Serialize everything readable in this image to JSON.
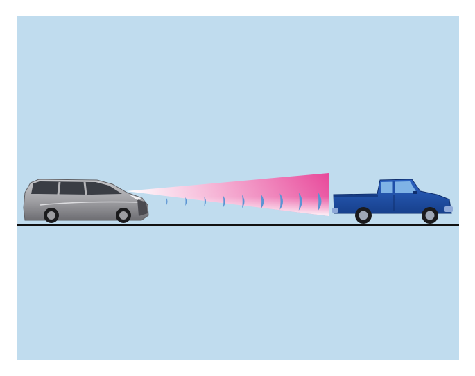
{
  "scene": {
    "background_color": "#ffffff",
    "panel_color": "#c0dcee",
    "road_color": "#111111"
  },
  "ego_vehicle": {
    "type": "minivan",
    "body_color": "#a8a8ab",
    "window_color": "#3a3d44"
  },
  "radar_beam": {
    "gradient_start_color": "#ffffff",
    "gradient_end_color": "#e8489a",
    "wave_color": "#5b94d3",
    "wave_count": 9
  },
  "target_vehicle": {
    "type": "pickup-truck",
    "body_color": "#1f4fa8",
    "window_color": "#7fb3e6"
  }
}
